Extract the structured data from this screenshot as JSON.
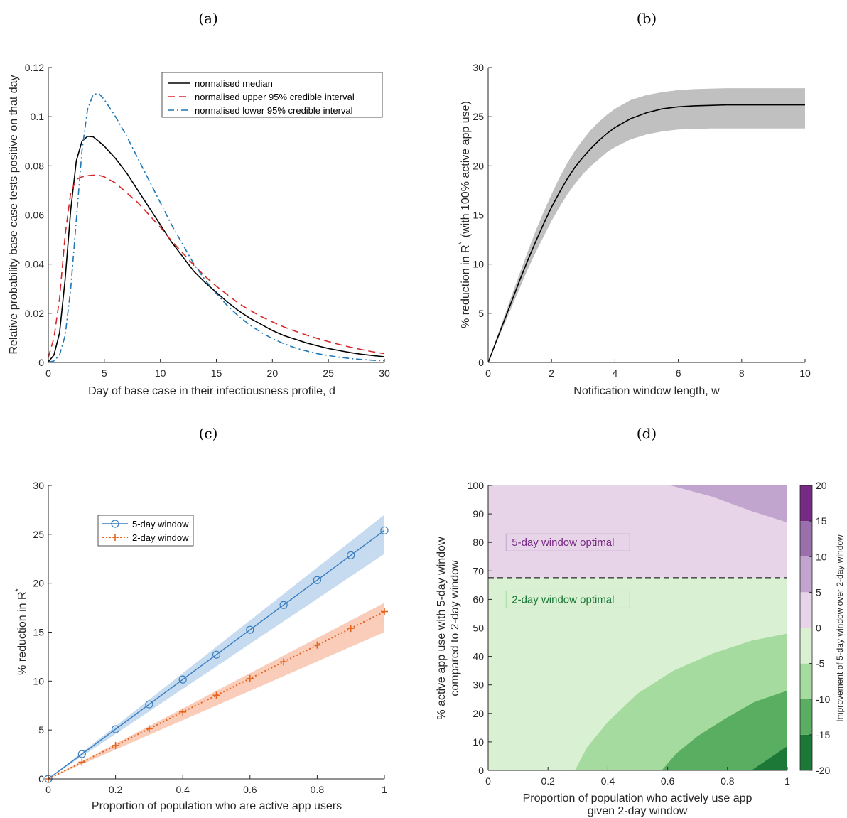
{
  "panels": {
    "a": {
      "label": "(a)"
    },
    "b": {
      "label": "(b)"
    },
    "c": {
      "label": "(c)"
    },
    "d": {
      "label": "(d)"
    }
  },
  "chart_data": [
    {
      "id": "a",
      "type": "line",
      "xlabel": "Day of base case in their infectiousness profile, d",
      "ylabel": "Relative probability base case tests positive on that day",
      "xlim": [
        0,
        30
      ],
      "ylim": [
        0,
        0.12
      ],
      "xticks": [
        "0",
        "5",
        "10",
        "15",
        "20",
        "25",
        "30"
      ],
      "yticks": [
        "0",
        "0.02",
        "0.04",
        "0.06",
        "0.08",
        "0.1",
        "0.12"
      ],
      "legend_position": "top-right",
      "series": [
        {
          "name": "normalised median",
          "color": "#000000",
          "style": "solid",
          "x": [
            0,
            0.5,
            1,
            1.5,
            2,
            2.5,
            3,
            3.5,
            4,
            4.5,
            5,
            6,
            7,
            8,
            9,
            10,
            11,
            12,
            13,
            14,
            15,
            16,
            17,
            18,
            19,
            20,
            21,
            22,
            23,
            24,
            25,
            26,
            27,
            28,
            29,
            30
          ],
          "y": [
            0.0003,
            0.003,
            0.012,
            0.034,
            0.062,
            0.082,
            0.09,
            0.092,
            0.0918,
            0.09,
            0.088,
            0.083,
            0.077,
            0.07,
            0.063,
            0.056,
            0.049,
            0.043,
            0.037,
            0.0325,
            0.0285,
            0.0245,
            0.021,
            0.018,
            0.0155,
            0.013,
            0.011,
            0.0095,
            0.008,
            0.0068,
            0.0057,
            0.0048,
            0.004,
            0.0033,
            0.0028,
            0.0023
          ]
        },
        {
          "name": "normalised upper 95% credible interval",
          "color": "#d62728",
          "style": "dashed",
          "x": [
            0,
            0.5,
            1,
            1.5,
            2,
            2.5,
            3,
            3.5,
            4,
            4.5,
            5,
            6,
            7,
            8,
            9,
            10,
            11,
            12,
            13,
            14,
            15,
            16,
            17,
            18,
            19,
            20,
            21,
            22,
            23,
            24,
            25,
            26,
            27,
            28,
            29,
            30
          ],
          "y": [
            0.002,
            0.01,
            0.026,
            0.052,
            0.069,
            0.0745,
            0.0755,
            0.076,
            0.0762,
            0.0762,
            0.0755,
            0.073,
            0.069,
            0.065,
            0.06,
            0.055,
            0.0495,
            0.0445,
            0.0395,
            0.035,
            0.031,
            0.0275,
            0.024,
            0.0212,
            0.0187,
            0.0165,
            0.0145,
            0.0128,
            0.0112,
            0.0098,
            0.0085,
            0.0073,
            0.0062,
            0.0052,
            0.0043,
            0.0036
          ]
        },
        {
          "name": "normalised lower 95% credible interval",
          "color": "#1f77b4",
          "style": "dashdot",
          "x": [
            0,
            0.5,
            1,
            1.5,
            2,
            2.5,
            3,
            3.5,
            4,
            4.5,
            5,
            6,
            7,
            8,
            9,
            10,
            11,
            12,
            13,
            14,
            15,
            16,
            17,
            18,
            19,
            20,
            21,
            22,
            23,
            24,
            25,
            26,
            27,
            28,
            29,
            30
          ],
          "y": [
            0.0001,
            0.0006,
            0.003,
            0.011,
            0.03,
            0.058,
            0.086,
            0.103,
            0.109,
            0.1095,
            0.107,
            0.1,
            0.092,
            0.083,
            0.074,
            0.065,
            0.056,
            0.048,
            0.04,
            0.0335,
            0.028,
            0.023,
            0.0188,
            0.0152,
            0.0122,
            0.0097,
            0.0077,
            0.006,
            0.0047,
            0.0036,
            0.0028,
            0.0021,
            0.0016,
            0.0012,
            0.0009,
            0.0007
          ]
        }
      ]
    },
    {
      "id": "b",
      "type": "area",
      "xlabel": "Notification window length, w",
      "ylabel": "% reduction in R",
      "ylabel_sup": "*",
      "ylabel_suffix": "(with 100% active app use)",
      "xlim": [
        0,
        10
      ],
      "ylim": [
        0,
        30
      ],
      "xticks": [
        "0",
        "2",
        "4",
        "6",
        "8",
        "10"
      ],
      "yticks": [
        "0",
        "5",
        "10",
        "15",
        "20",
        "25",
        "30"
      ],
      "band_color": "#c0c0c0",
      "x": [
        0,
        0.25,
        0.5,
        0.75,
        1,
        1.25,
        1.5,
        1.75,
        2,
        2.25,
        2.5,
        2.75,
        3,
        3.25,
        3.5,
        3.75,
        4,
        4.5,
        5,
        5.5,
        6,
        6.5,
        7,
        7.5,
        8,
        9,
        10
      ],
      "median": [
        0,
        2.1,
        4.2,
        6.3,
        8.4,
        10.4,
        12.3,
        14.1,
        15.8,
        17.3,
        18.7,
        19.9,
        20.9,
        21.8,
        22.6,
        23.3,
        23.9,
        24.8,
        25.4,
        25.8,
        26.0,
        26.1,
        26.15,
        26.2,
        26.2,
        26.2,
        26.2
      ],
      "upper": [
        0,
        2.3,
        4.6,
        6.9,
        9.1,
        11.3,
        13.4,
        15.3,
        17.1,
        18.8,
        20.3,
        21.6,
        22.7,
        23.7,
        24.5,
        25.2,
        25.8,
        26.7,
        27.2,
        27.5,
        27.7,
        27.8,
        27.85,
        27.9,
        27.9,
        27.9,
        27.9
      ],
      "lower": [
        0,
        1.9,
        3.8,
        5.7,
        7.6,
        9.5,
        11.2,
        12.8,
        14.4,
        15.8,
        17.1,
        18.2,
        19.2,
        20.0,
        20.7,
        21.4,
        21.9,
        22.7,
        23.2,
        23.5,
        23.7,
        23.75,
        23.8,
        23.8,
        23.8,
        23.8,
        23.8
      ]
    },
    {
      "id": "c",
      "type": "line",
      "xlabel": "Proportion of population who are active app users",
      "ylabel": "% reduction in R",
      "ylabel_sup": "*",
      "xlim": [
        0,
        1
      ],
      "ylim": [
        0,
        30
      ],
      "xticks": [
        "0",
        "0.2",
        "0.4",
        "0.6",
        "0.8",
        "1"
      ],
      "yticks": [
        "0",
        "5",
        "10",
        "15",
        "20",
        "25",
        "30"
      ],
      "legend_position": "top-left",
      "series": [
        {
          "name": "5-day window",
          "color": "#3a7ebf",
          "band_color": "#c6dbef",
          "style": "solid",
          "marker": "circle",
          "x": [
            0,
            0.1,
            0.2,
            0.3,
            0.4,
            0.5,
            0.6,
            0.7,
            0.8,
            0.9,
            1.0
          ],
          "y": [
            0,
            2.54,
            5.08,
            7.62,
            10.16,
            12.7,
            15.24,
            17.78,
            20.32,
            22.86,
            25.4
          ],
          "upper": [
            0,
            2.7,
            5.4,
            8.1,
            10.8,
            13.5,
            16.2,
            18.9,
            21.6,
            24.3,
            27.0
          ],
          "lower": [
            0,
            2.3,
            4.6,
            6.9,
            9.2,
            11.5,
            13.8,
            16.1,
            18.4,
            20.7,
            23.0
          ]
        },
        {
          "name": "2-day window",
          "color": "#e8631c",
          "band_color": "#f9cdb9",
          "style": "dotted",
          "marker": "plus",
          "x": [
            0,
            0.1,
            0.2,
            0.3,
            0.4,
            0.5,
            0.6,
            0.7,
            0.8,
            0.9,
            1.0
          ],
          "y": [
            0,
            1.71,
            3.42,
            5.13,
            6.84,
            8.55,
            10.26,
            11.97,
            13.68,
            15.39,
            17.1
          ],
          "upper": [
            0,
            1.8,
            3.6,
            5.4,
            7.2,
            9.0,
            10.8,
            12.6,
            14.4,
            16.2,
            18.0
          ],
          "lower": [
            0,
            1.5,
            3.0,
            4.5,
            6.0,
            7.5,
            9.0,
            10.5,
            12.0,
            13.5,
            15.0
          ]
        }
      ]
    },
    {
      "id": "d",
      "type": "heatmap",
      "xlabel_line1": "Proportion of population who actively use app",
      "xlabel_line2": "given 2-day window",
      "ylabel_line1": "% active app use with 5-day window",
      "ylabel_line2": "compared to 2-day window",
      "colorbar_label": "Improvement of 5-day window over 2-day window",
      "xlim": [
        0,
        1
      ],
      "ylim": [
        0,
        100
      ],
      "xticks": [
        "0",
        "0.2",
        "0.4",
        "0.6",
        "0.8",
        "1"
      ],
      "yticks": [
        "0",
        "10",
        "20",
        "30",
        "40",
        "50",
        "60",
        "70",
        "80",
        "90",
        "100"
      ],
      "colorbar_ticks": [
        "-20",
        "-15",
        "-10",
        "-5",
        "0",
        "5",
        "10",
        "15",
        "20"
      ],
      "colorbar_range": [
        -20,
        20
      ],
      "colorbar_levels": [
        {
          "from": -20,
          "to": -15,
          "color": "#1b7837"
        },
        {
          "from": -15,
          "to": -10,
          "color": "#5aae61"
        },
        {
          "from": -10,
          "to": -5,
          "color": "#a6dba0"
        },
        {
          "from": -5,
          "to": 0,
          "color": "#d9f0d3"
        },
        {
          "from": 0,
          "to": 5,
          "color": "#e7d4e8"
        },
        {
          "from": 5,
          "to": 10,
          "color": "#c2a5cf"
        },
        {
          "from": 10,
          "to": 15,
          "color": "#9970ab"
        },
        {
          "from": 15,
          "to": 20,
          "color": "#762a83"
        }
      ],
      "threshold_y": 67.5,
      "regions": [
        {
          "label": "5-day window optimal",
          "color": "#762a83",
          "x": 0.06,
          "y": 80
        },
        {
          "label": "2-day window optimal",
          "color": "#1b7837",
          "x": 0.06,
          "y": 60
        }
      ],
      "contours": [
        {
          "level": "5-10",
          "color": "#c2a5cf",
          "points": [
            [
              0.61,
              100
            ],
            [
              0.75,
              96
            ],
            [
              0.88,
              91
            ],
            [
              1.0,
              87
            ]
          ]
        },
        {
          "level": "-10--5",
          "color": "#a6dba0",
          "points": [
            [
              0.29,
              0
            ],
            [
              0.33,
              8
            ],
            [
              0.4,
              17
            ],
            [
              0.5,
              27
            ],
            [
              0.62,
              35
            ],
            [
              0.75,
              41
            ],
            [
              0.88,
              45.5
            ],
            [
              1.0,
              48
            ]
          ]
        },
        {
          "level": "-15--10",
          "color": "#5aae61",
          "points": [
            [
              0.58,
              0
            ],
            [
              0.63,
              6
            ],
            [
              0.7,
              12
            ],
            [
              0.79,
              18
            ],
            [
              0.89,
              24
            ],
            [
              1.0,
              28
            ]
          ]
        },
        {
          "level": "-20--15",
          "color": "#1b7837",
          "points": [
            [
              0.88,
              0
            ],
            [
              0.93,
              3.5
            ],
            [
              1.0,
              8.5
            ]
          ]
        }
      ]
    }
  ]
}
